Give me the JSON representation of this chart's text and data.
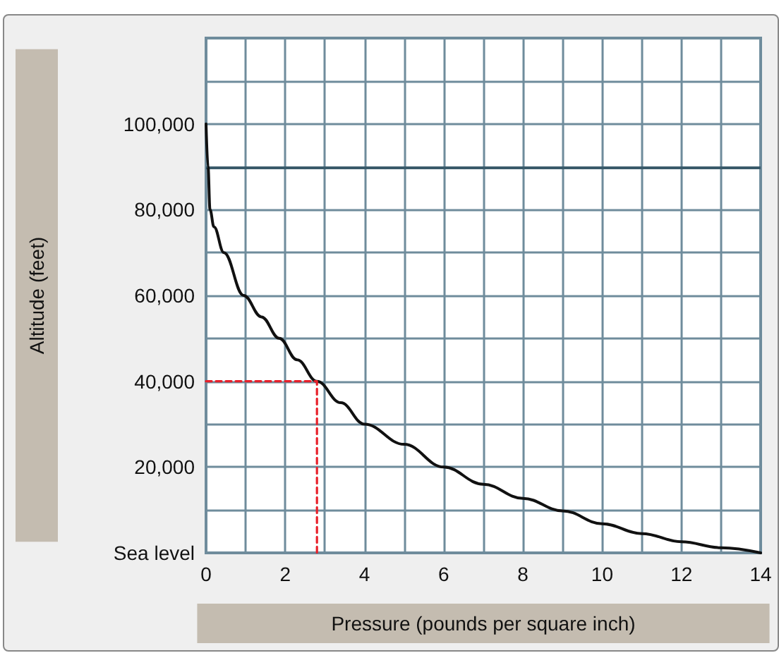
{
  "chart_data": {
    "type": "line",
    "xlabel": "Pressure (pounds per square inch)",
    "ylabel": "Altitude (feet)",
    "xlim": [
      0,
      14
    ],
    "ylim": [
      0,
      120000
    ],
    "xticks": [
      0,
      2,
      4,
      6,
      8,
      10,
      12,
      14
    ],
    "yticks": [
      {
        "value": 0,
        "label": "Sea level"
      },
      {
        "value": 20000,
        "label": "20,000"
      },
      {
        "value": 40000,
        "label": "40,000"
      },
      {
        "value": 60000,
        "label": "60,000"
      },
      {
        "value": 80000,
        "label": "80,000"
      },
      {
        "value": 100000,
        "label": "100,000"
      }
    ],
    "grid": true,
    "marker": "none",
    "series": [
      {
        "color": "#111111",
        "line_style": "solid",
        "x": [
          0,
          0.05,
          0.1,
          0.2,
          0.45,
          0.95,
          1.4,
          1.85,
          2.3,
          2.8,
          3.4,
          4.0,
          5.0,
          6.0,
          7.0,
          8.0,
          9.0,
          10.0,
          11.0,
          12.0,
          13.0,
          14.0
        ],
        "values": [
          100000,
          90000,
          80000,
          76000,
          70000,
          60000,
          55000,
          50000,
          45000,
          40000,
          35000,
          30000,
          25300,
          20000,
          16000,
          12700,
          9800,
          6800,
          4500,
          2600,
          1200,
          0
        ]
      },
      {
        "color": "#e8202a",
        "line_style": "dashed",
        "x": [
          0,
          2.8,
          2.8
        ],
        "values": [
          40000,
          40000,
          0
        ]
      }
    ],
    "ref_lines": [
      {
        "axis": "y",
        "value": 90000,
        "color": "#3a5a6a"
      }
    ]
  }
}
